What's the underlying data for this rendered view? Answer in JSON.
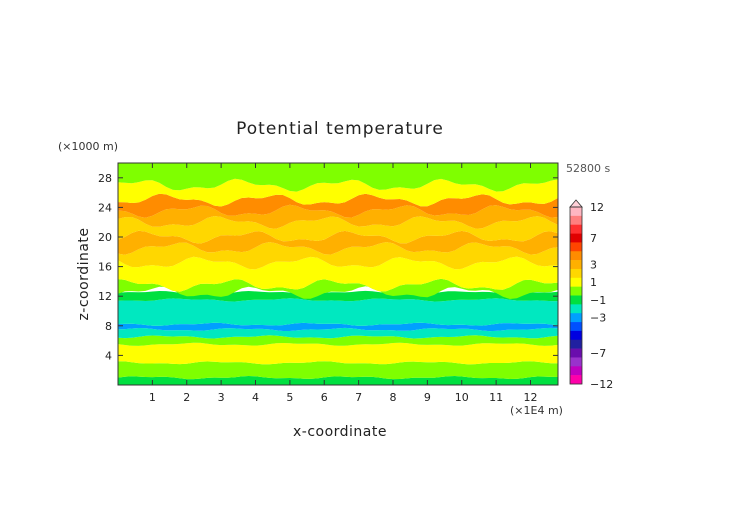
{
  "chart_data": {
    "type": "heatmap",
    "title": "Potential temperature",
    "xlabel": "x-coordinate",
    "ylabel": "z-coordinate",
    "x_unit": "(×1E4 m)",
    "y_unit": "(×1000 m)",
    "time_label": "52800 s",
    "x_ticks": [
      1,
      2,
      3,
      4,
      5,
      6,
      7,
      8,
      9,
      10,
      11,
      12
    ],
    "y_ticks": [
      4,
      8,
      12,
      16,
      20,
      24,
      28
    ],
    "xlim": [
      0,
      12.8
    ],
    "ylim": [
      0,
      30
    ],
    "colorbar": {
      "labels": [
        12,
        7,
        3,
        1,
        -1,
        -3,
        -7,
        -12
      ],
      "bands": [
        {
          "value": 12,
          "color": "#ffb6c1"
        },
        {
          "value": 10,
          "color": "#ff7f7f"
        },
        {
          "value": 8,
          "color": "#ff3030"
        },
        {
          "value": 7,
          "color": "#e00000"
        },
        {
          "value": 6,
          "color": "#ff4500"
        },
        {
          "value": 4,
          "color": "#ff8c00"
        },
        {
          "value": 3,
          "color": "#ffb000"
        },
        {
          "value": 2,
          "color": "#ffd700"
        },
        {
          "value": 1,
          "color": "#ffff00"
        },
        {
          "value": 0,
          "color": "#7fff00"
        },
        {
          "value": -1,
          "color": "#00e040"
        },
        {
          "value": -2,
          "color": "#00e8c0"
        },
        {
          "value": -3,
          "color": "#00a0ff"
        },
        {
          "value": -4,
          "color": "#0050ff"
        },
        {
          "value": -5,
          "color": "#0000e0"
        },
        {
          "value": -6,
          "color": "#2020a0"
        },
        {
          "value": -7,
          "color": "#6a0dad"
        },
        {
          "value": -8,
          "color": "#9932cc"
        },
        {
          "value": -10,
          "color": "#c000c0"
        },
        {
          "value": -12,
          "color": "#ff00aa"
        }
      ]
    },
    "layers": [
      {
        "z_range": [
          0,
          1
        ],
        "value": -1
      },
      {
        "z_range": [
          1,
          3
        ],
        "value": 0
      },
      {
        "z_range": [
          3,
          5.5
        ],
        "value": 1
      },
      {
        "z_range": [
          5.5,
          6.5
        ],
        "value": 0
      },
      {
        "z_range": [
          6.5,
          7.5
        ],
        "value": -2
      },
      {
        "z_range": [
          7.5,
          8.2
        ],
        "value": -3
      },
      {
        "z_range": [
          8.2,
          11.5
        ],
        "value": -2
      },
      {
        "z_range": [
          11.5,
          12.5
        ],
        "value": -1
      },
      {
        "z_range": [
          12.5,
          13.5
        ],
        "value": 0
      },
      {
        "z_range": [
          13.5,
          16.5
        ],
        "value": 1
      },
      {
        "z_range": [
          16.5,
          18.5
        ],
        "value": 2
      },
      {
        "z_range": [
          18.5,
          20
        ],
        "value": 3
      },
      {
        "z_range": [
          20,
          22
        ],
        "value": 2
      },
      {
        "z_range": [
          22,
          23.5
        ],
        "value": 3
      },
      {
        "z_range": [
          23.5,
          25
        ],
        "value": 4
      },
      {
        "z_range": [
          25,
          27
        ],
        "value": 1
      },
      {
        "z_range": [
          27,
          30
        ],
        "value": 0
      }
    ]
  }
}
